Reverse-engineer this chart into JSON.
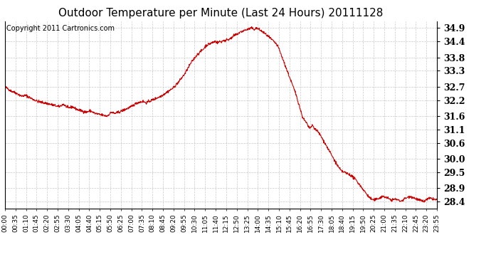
{
  "title": "Outdoor Temperature per Minute (Last 24 Hours) 20111128",
  "copyright_text": "Copyright 2011 Cartronics.com",
  "line_color": "#cc0000",
  "bg_color": "#ffffff",
  "plot_bg_color": "#ffffff",
  "grid_color": "#bbbbbb",
  "grid_linestyle": "--",
  "ylim": [
    28.15,
    35.15
  ],
  "yticks": [
    28.4,
    28.9,
    29.5,
    30.0,
    30.6,
    31.1,
    31.6,
    32.2,
    32.7,
    33.3,
    33.8,
    34.4,
    34.9
  ],
  "xtick_labels": [
    "00:00",
    "00:35",
    "01:10",
    "01:45",
    "02:20",
    "02:55",
    "03:30",
    "04:05",
    "04:40",
    "05:15",
    "05:50",
    "06:25",
    "07:00",
    "07:35",
    "08:10",
    "08:45",
    "09:20",
    "09:55",
    "10:30",
    "11:05",
    "11:40",
    "12:15",
    "12:50",
    "13:25",
    "14:00",
    "14:35",
    "15:10",
    "15:45",
    "16:20",
    "16:55",
    "17:30",
    "18:05",
    "18:40",
    "19:15",
    "19:50",
    "20:25",
    "21:00",
    "21:35",
    "22:10",
    "22:45",
    "23:20",
    "23:55"
  ],
  "title_fontsize": 11,
  "tick_fontsize": 6.5,
  "ytick_fontsize": 9,
  "copyright_fontsize": 7
}
